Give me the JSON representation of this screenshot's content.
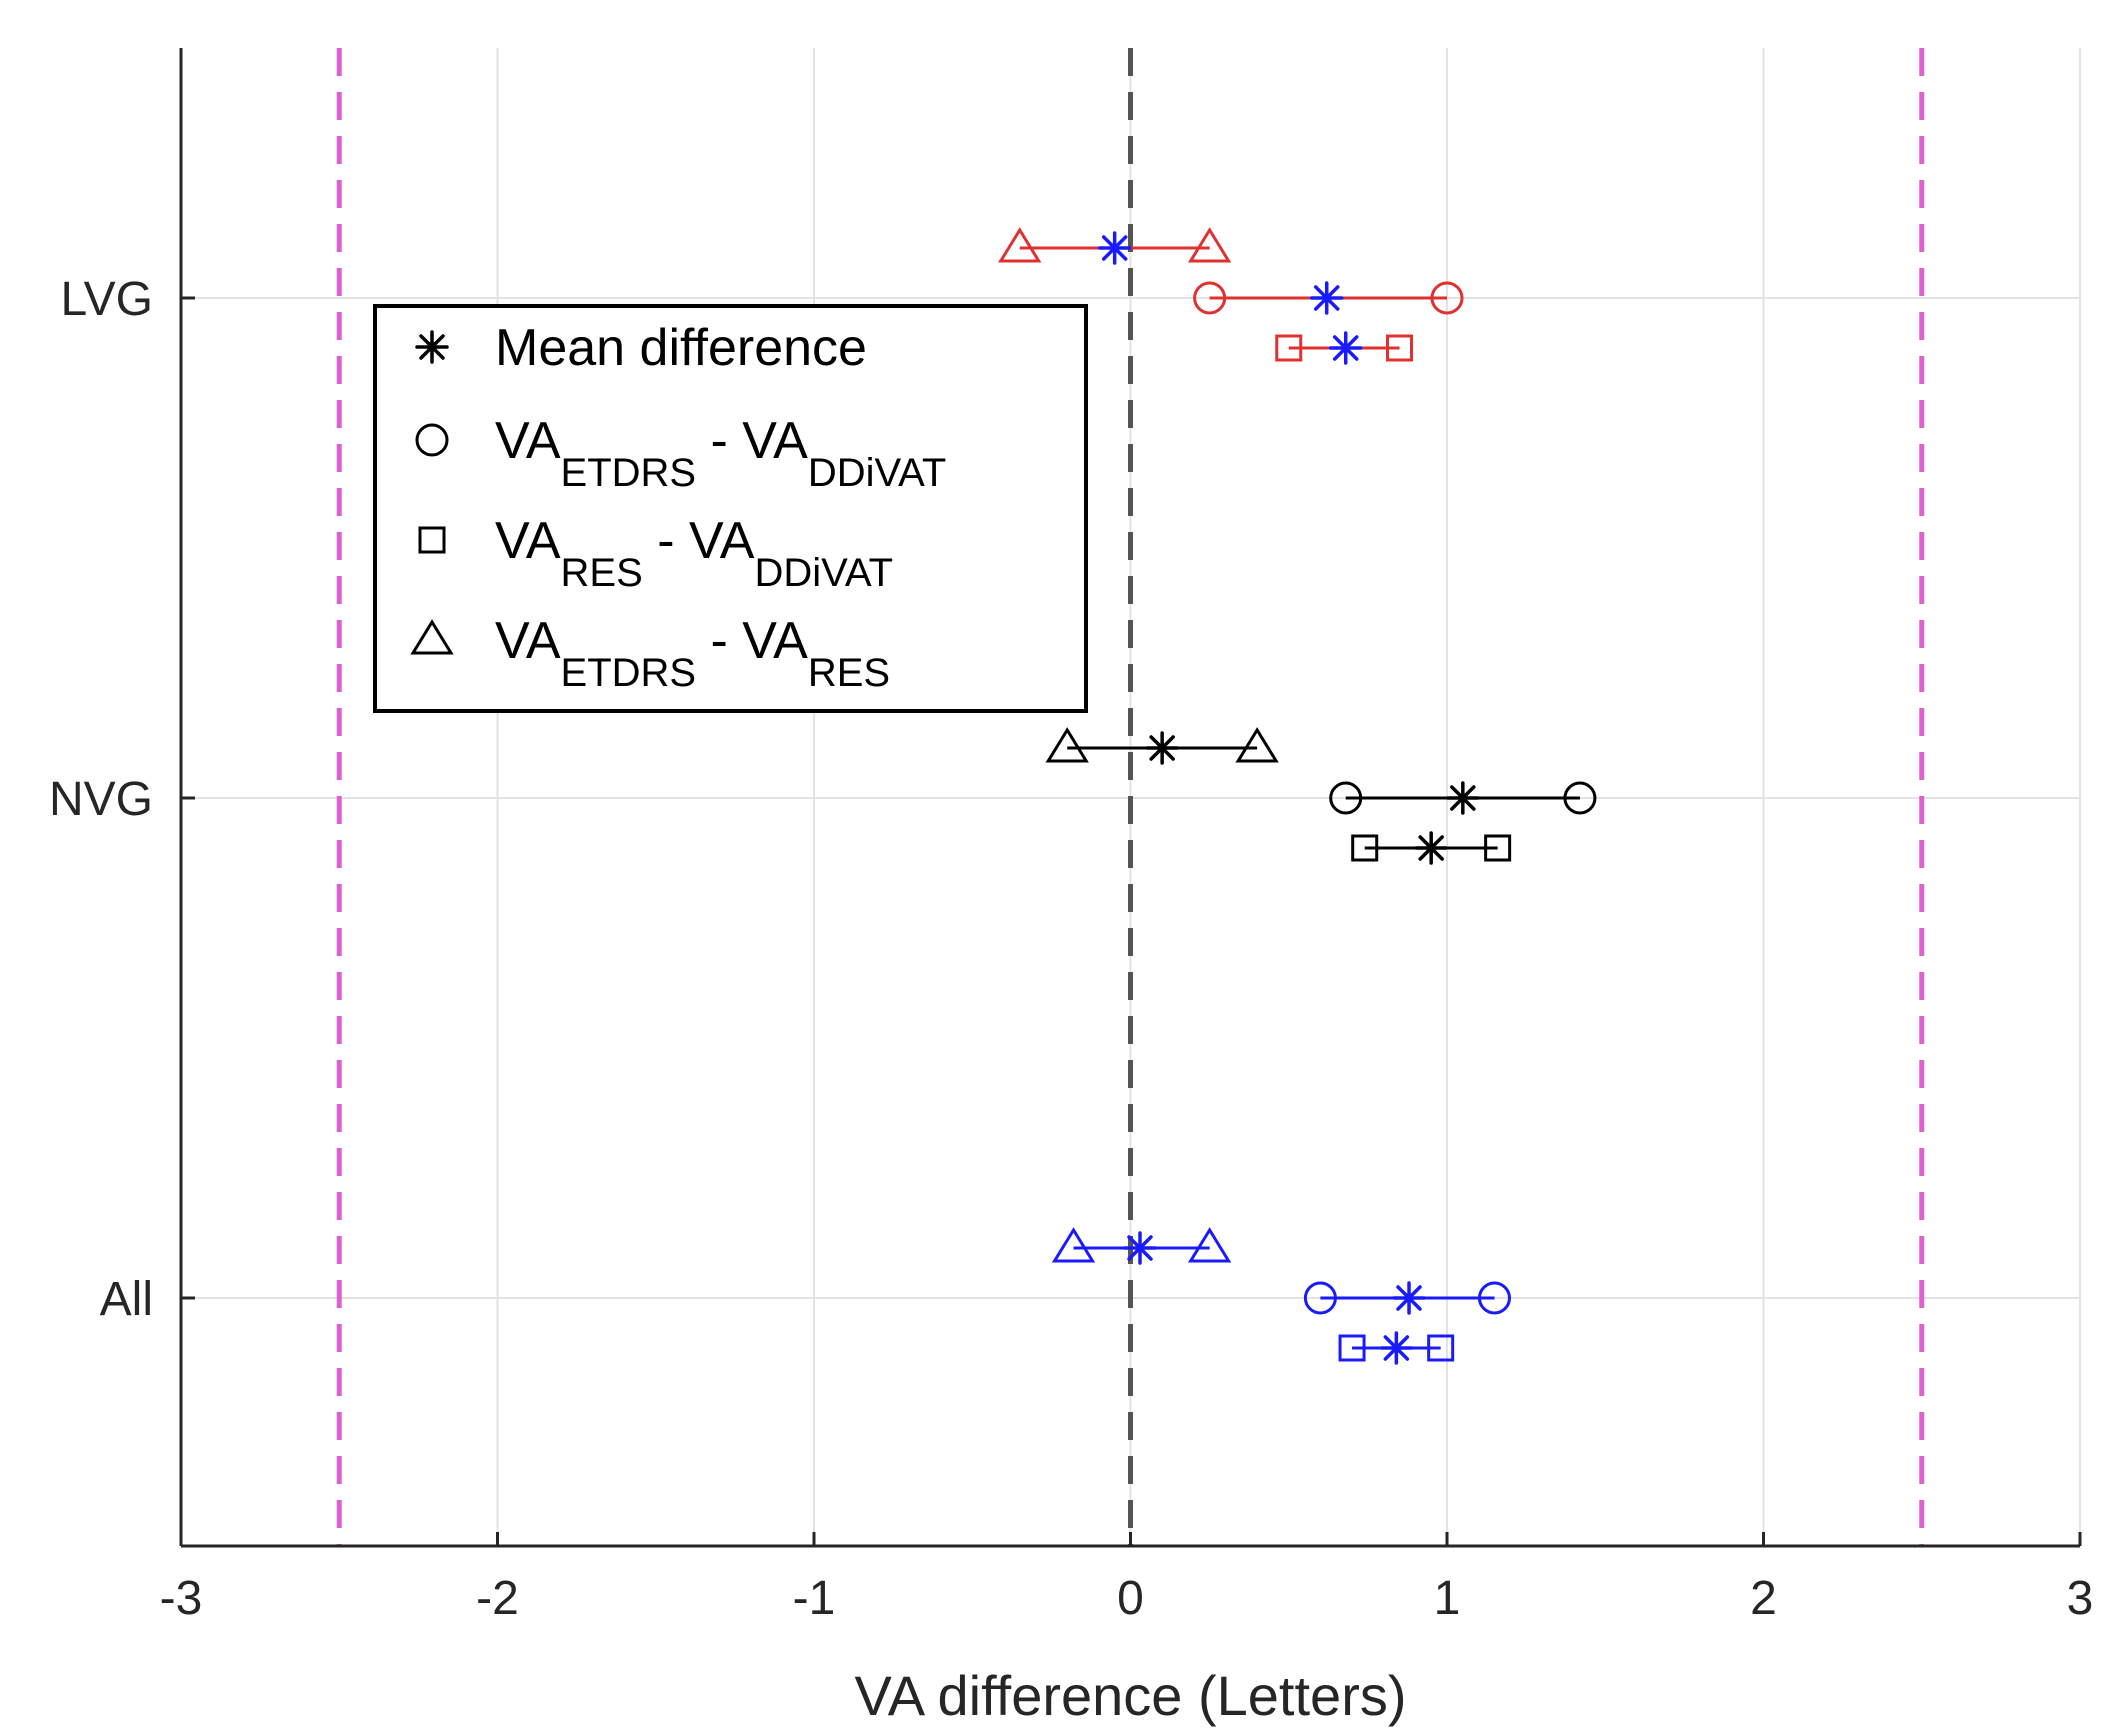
{
  "chart_data": {
    "type": "scatter",
    "subtype": "interval-forest",
    "title": "",
    "xlabel": "VA difference (Letters)",
    "ylabel": "",
    "xlim": [
      -3,
      3
    ],
    "xticks": [
      -3,
      -2,
      -1,
      0,
      1,
      2,
      3
    ],
    "xtick_labels": [
      "-3",
      "-2",
      "-1",
      "0",
      "1",
      "2",
      "3"
    ],
    "y_categories": [
      "LVG",
      "NVG",
      "All"
    ],
    "grid": true,
    "reference_lines": [
      {
        "name": "zero-line",
        "x": 0,
        "style": "dashed",
        "color": "#555555"
      },
      {
        "name": "lower-limit",
        "x": -2.5,
        "style": "dashed",
        "color": "#e060d0"
      },
      {
        "name": "upper-limit",
        "x": 2.5,
        "style": "dashed",
        "color": "#e060d0"
      }
    ],
    "legend": {
      "placement": "top-left",
      "entries": [
        {
          "marker": "star",
          "text": "Mean difference",
          "parts": []
        },
        {
          "marker": "circle",
          "text": "VA_ETDRS - VA_DDiVAT",
          "parts": [
            [
              "VA",
              "ETDRS"
            ],
            [
              " - VA",
              "DDiVAT"
            ]
          ]
        },
        {
          "marker": "square",
          "text": "VA_RES - VA_DDiVAT",
          "parts": [
            [
              "VA",
              "RES"
            ],
            [
              " - VA",
              "DDiVAT"
            ]
          ]
        },
        {
          "marker": "triangle",
          "text": "VA_ETDRS - VA_RES",
          "parts": [
            [
              "VA",
              "ETDRS"
            ],
            [
              " - VA",
              "RES"
            ]
          ]
        }
      ]
    },
    "series": [
      {
        "group": "LVG",
        "comparison": "VA_ETDRS - VA_RES",
        "marker": "triangle",
        "offset": -1,
        "lower": -0.35,
        "upper": 0.25,
        "mean": -0.05,
        "line_color": "#e03030",
        "mean_color": "#1a1aff"
      },
      {
        "group": "LVG",
        "comparison": "VA_ETDRS - VA_DDiVAT",
        "marker": "circle",
        "offset": 0,
        "lower": 0.25,
        "upper": 1.0,
        "mean": 0.62,
        "line_color": "#e03030",
        "mean_color": "#1a1aff"
      },
      {
        "group": "LVG",
        "comparison": "VA_RES - VA_DDiVAT",
        "marker": "square",
        "offset": 1,
        "lower": 0.5,
        "upper": 0.85,
        "mean": 0.68,
        "line_color": "#e03030",
        "mean_color": "#1a1aff"
      },
      {
        "group": "NVG",
        "comparison": "VA_ETDRS - VA_RES",
        "marker": "triangle",
        "offset": -1,
        "lower": -0.2,
        "upper": 0.4,
        "mean": 0.1,
        "line_color": "#000000",
        "mean_color": "#000000"
      },
      {
        "group": "NVG",
        "comparison": "VA_ETDRS - VA_DDiVAT",
        "marker": "circle",
        "offset": 0,
        "lower": 0.68,
        "upper": 1.42,
        "mean": 1.05,
        "line_color": "#000000",
        "mean_color": "#000000"
      },
      {
        "group": "NVG",
        "comparison": "VA_RES - VA_DDiVAT",
        "marker": "square",
        "offset": 1,
        "lower": 0.74,
        "upper": 1.16,
        "mean": 0.95,
        "line_color": "#000000",
        "mean_color": "#000000"
      },
      {
        "group": "All",
        "comparison": "VA_ETDRS - VA_RES",
        "marker": "triangle",
        "offset": -1,
        "lower": -0.18,
        "upper": 0.25,
        "mean": 0.03,
        "line_color": "#1a1aff",
        "mean_color": "#1a1aff"
      },
      {
        "group": "All",
        "comparison": "VA_ETDRS - VA_DDiVAT",
        "marker": "circle",
        "offset": 0,
        "lower": 0.6,
        "upper": 1.15,
        "mean": 0.88,
        "line_color": "#1a1aff",
        "mean_color": "#1a1aff"
      },
      {
        "group": "All",
        "comparison": "VA_RES - VA_DDiVAT",
        "marker": "square",
        "offset": 1,
        "lower": 0.7,
        "upper": 0.98,
        "mean": 0.84,
        "line_color": "#1a1aff",
        "mean_color": "#1a1aff"
      }
    ]
  }
}
